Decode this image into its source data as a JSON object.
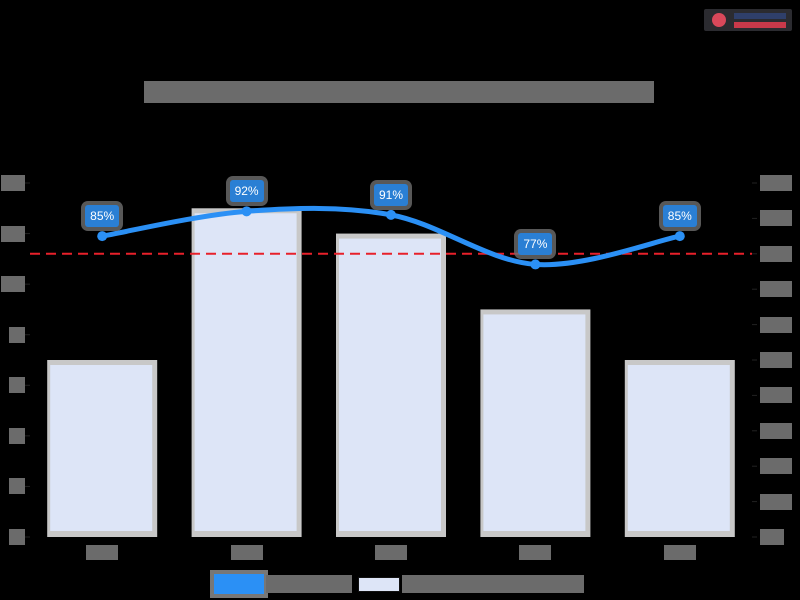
{
  "header": {
    "title": "",
    "title_redacted": true,
    "logo": "logo"
  },
  "colors": {
    "background": "#000000",
    "bar_fill": "#dde5f7",
    "bar_border": "#c8c8c8",
    "line": "#2b90f5",
    "data_label_bg": "#2a7fd4",
    "target_line": "#e8202a",
    "redaction": "#6b6b6b"
  },
  "legend": {
    "items": [
      {
        "type": "line",
        "label": "",
        "redacted": true
      },
      {
        "type": "bar",
        "label": "",
        "redacted": true
      }
    ]
  },
  "data_labels": [
    "85%",
    "92%",
    "91%",
    "77%",
    "85%"
  ],
  "chart_data": {
    "type": "bar",
    "title": "",
    "xlabel": "",
    "ylabel": "",
    "y2label": "",
    "categories": [
      "",
      "",
      "",
      "",
      ""
    ],
    "series": [
      {
        "name": "",
        "type": "bar",
        "axis": "left",
        "values": [
          7,
          13,
          12,
          9,
          7
        ]
      },
      {
        "name": "",
        "type": "line",
        "axis": "right",
        "smooth": true,
        "values": [
          85,
          92,
          91,
          77,
          85
        ],
        "value_labels": [
          "85%",
          "92%",
          "91%",
          "77%",
          "85%"
        ]
      }
    ],
    "reference_lines": [
      {
        "axis": "right",
        "value": 80,
        "style": "dashed",
        "color": "#e8202a"
      }
    ],
    "ylim": [
      0,
      14
    ],
    "yticks": [
      0,
      2,
      4,
      6,
      8,
      10,
      12,
      14
    ],
    "y2lim": [
      0,
      100
    ],
    "y2ticks": [
      0,
      10,
      20,
      30,
      40,
      50,
      60,
      70,
      80,
      90,
      100
    ],
    "tick_labels_redacted": true,
    "grid": false,
    "legend_position": "bottom"
  }
}
